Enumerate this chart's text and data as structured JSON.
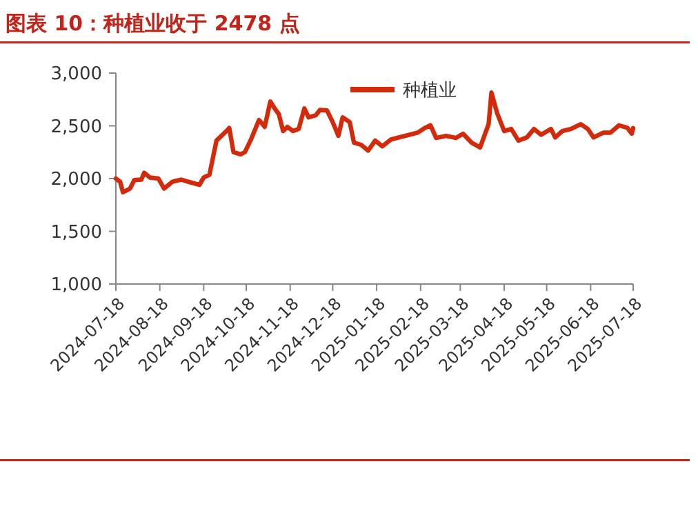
{
  "chart_data": {
    "type": "line",
    "title": "图表 10：种植业收于 2478 点",
    "x": [
      "2024-07-18",
      "2024-07-21",
      "2024-07-23",
      "2024-07-28",
      "2024-07-31",
      "2024-08-05",
      "2024-08-07",
      "2024-08-11",
      "2024-08-17",
      "2024-08-21",
      "2024-08-27",
      "2024-09-02",
      "2024-09-07",
      "2024-09-15",
      "2024-09-18",
      "2024-09-22",
      "2024-09-27",
      "2024-10-04",
      "2024-10-06",
      "2024-10-09",
      "2024-10-14",
      "2024-10-17",
      "2024-10-21",
      "2024-10-27",
      "2024-10-31",
      "2024-11-04",
      "2024-11-07",
      "2024-11-10",
      "2024-11-13",
      "2024-11-16",
      "2024-11-20",
      "2024-11-24",
      "2024-11-28",
      "2024-12-01",
      "2024-12-06",
      "2024-12-09",
      "2024-12-14",
      "2024-12-18",
      "2024-12-22",
      "2024-12-25",
      "2024-12-30",
      "2025-01-02",
      "2025-01-07",
      "2025-01-12",
      "2025-01-17",
      "2025-01-22",
      "2025-01-28",
      "2025-02-07",
      "2025-02-16",
      "2025-02-21",
      "2025-02-25",
      "2025-03-01",
      "2025-03-08",
      "2025-03-15",
      "2025-03-20",
      "2025-03-26",
      "2025-04-01",
      "2025-04-07",
      "2025-04-09",
      "2025-04-13",
      "2025-04-18",
      "2025-04-23",
      "2025-04-28",
      "2025-05-04",
      "2025-05-09",
      "2025-05-14",
      "2025-05-21",
      "2025-05-24",
      "2025-05-29",
      "2025-06-04",
      "2025-06-11",
      "2025-06-16",
      "2025-06-20",
      "2025-06-27",
      "2025-07-02",
      "2025-07-08",
      "2025-07-14",
      "2025-07-17",
      "2025-07-18"
    ],
    "series": [
      {
        "name": "种植业",
        "color": "#d42a0c",
        "values": [
          2000,
          1970,
          1870,
          1905,
          1985,
          1990,
          2055,
          2010,
          2000,
          1905,
          1970,
          1990,
          1970,
          1940,
          2010,
          2035,
          2360,
          2450,
          2480,
          2250,
          2230,
          2250,
          2360,
          2555,
          2490,
          2730,
          2665,
          2610,
          2450,
          2490,
          2450,
          2470,
          2665,
          2580,
          2600,
          2650,
          2645,
          2535,
          2405,
          2580,
          2535,
          2340,
          2320,
          2265,
          2360,
          2305,
          2370,
          2405,
          2435,
          2480,
          2505,
          2385,
          2405,
          2385,
          2425,
          2340,
          2295,
          2515,
          2815,
          2620,
          2450,
          2470,
          2360,
          2390,
          2470,
          2415,
          2470,
          2390,
          2450,
          2470,
          2515,
          2470,
          2390,
          2435,
          2435,
          2505,
          2480,
          2425,
          2478
        ]
      }
    ],
    "xlim": [
      "2024-07-18",
      "2025-07-18"
    ],
    "xticks": [
      "2024-07-18",
      "2024-08-18",
      "2024-09-18",
      "2024-10-18",
      "2024-11-18",
      "2024-12-18",
      "2025-01-18",
      "2025-02-18",
      "2025-03-18",
      "2025-04-18",
      "2025-05-18",
      "2025-06-18",
      "2025-07-18"
    ],
    "ylim": [
      1000,
      3000
    ],
    "yticks": [
      {
        "value": 1000,
        "label": "1,000"
      },
      {
        "value": 1500,
        "label": "1,500"
      },
      {
        "value": 2000,
        "label": "2,000"
      },
      {
        "value": 2500,
        "label": "2,500"
      },
      {
        "value": 3000,
        "label": "3,000"
      }
    ],
    "grid": false,
    "legend": "top right",
    "marker": "none",
    "line_style": "solid"
  }
}
